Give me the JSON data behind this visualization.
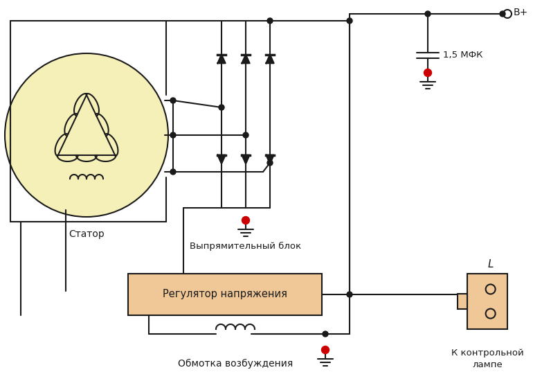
{
  "bg_color": "#ffffff",
  "line_color": "#1a1a1a",
  "stator_fill": "#f5f0b8",
  "regulator_fill": "#f0c898",
  "lamp_fill": "#f0c898",
  "ground_dot_color": "#cc0000",
  "label_stator": "Статор",
  "label_rectifier": "Выпрямительный блок",
  "label_regulator": "Регулятор напряжения",
  "label_excitation": "Обмотка возбуждения",
  "label_lamp": "К контрольной\nлампе",
  "label_capacitor": "1,5 МФК",
  "label_bplus": "B+",
  "label_L": "L"
}
